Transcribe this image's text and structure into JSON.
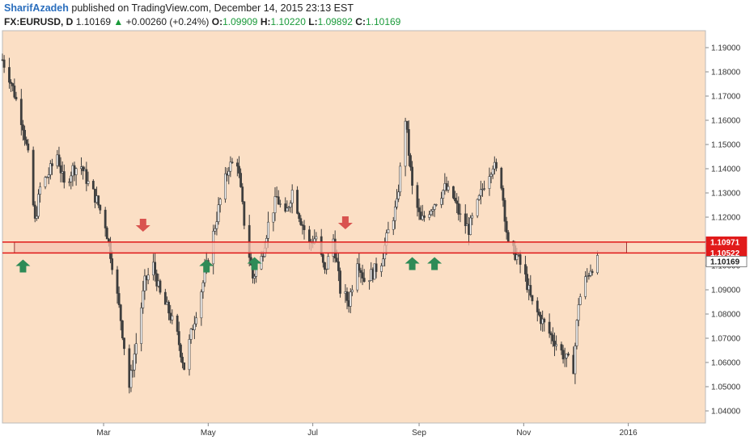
{
  "header": {
    "author": "SharifAzadeh",
    "published": "published on TradingView.com, December 14, 2015 23:13 EST",
    "symbol": "FX:EURUSD, D",
    "last": "1.10169",
    "change": "+0.00260 (+0.24%)",
    "o_label": "O:",
    "o_value": "1.09909",
    "h_label": "H:",
    "h_value": "1.10220",
    "l_label": "L:",
    "l_value": "1.09892",
    "c_label": "C:",
    "c_value": "1.10169"
  },
  "colors": {
    "background": "#fbdfc5",
    "candle": "#3d3d3d",
    "zone_fill": "#f5c4b2",
    "zone_line": "#e11a1a",
    "arrow_up": "#2e8b57",
    "arrow_down": "#d9534f"
  },
  "chart_data": {
    "type": "candlestick",
    "ylim": [
      1.035,
      1.197
    ],
    "yticks": [
      "1.04000",
      "1.05000",
      "1.06000",
      "1.07000",
      "1.08000",
      "1.09000",
      "1.10000",
      "1.11000",
      "1.12000",
      "1.13000",
      "1.14000",
      "1.15000",
      "1.16000",
      "1.17000",
      "1.18000",
      "1.19000"
    ],
    "x_labels": [
      "Mar",
      "May",
      "Jul",
      "Sep",
      "Nov",
      "2016"
    ],
    "x_label_dates": [
      "2015-03-01",
      "2015-05-01",
      "2015-07-01",
      "2015-09-01",
      "2015-11-01",
      "2016-01-01"
    ],
    "xlim": [
      "2015-01-01",
      "2016-02-15"
    ],
    "price_labels": [
      {
        "text": "1.10971",
        "value": 1.10971
      },
      {
        "text": "1.10522",
        "value": 1.10522
      },
      {
        "text": "1.10169",
        "value": 1.10169
      }
    ],
    "zone": {
      "start": "2015-01-08",
      "end": "2015-12-31",
      "low": 1.10522,
      "high": 1.10971
    },
    "arrows_up": [
      {
        "date": "2015-01-13",
        "value": 1.1025
      },
      {
        "date": "2015-04-30",
        "value": 1.1025
      },
      {
        "date": "2015-05-28",
        "value": 1.1035
      },
      {
        "date": "2015-08-28",
        "value": 1.1035
      },
      {
        "date": "2015-09-10",
        "value": 1.1035
      }
    ],
    "arrows_down": [
      {
        "date": "2015-03-24",
        "value": 1.114
      },
      {
        "date": "2015-07-20",
        "value": 1.115
      }
    ],
    "close_path": [
      [
        "2015-01-01",
        1.185
      ],
      [
        "2015-01-05",
        1.178
      ],
      [
        "2015-01-08",
        1.171
      ],
      [
        "2015-01-13",
        1.158
      ],
      [
        "2015-01-16",
        1.145
      ],
      [
        "2015-01-20",
        1.118
      ],
      [
        "2015-01-23",
        1.132
      ],
      [
        "2015-01-28",
        1.138
      ],
      [
        "2015-02-02",
        1.146
      ],
      [
        "2015-02-06",
        1.133
      ],
      [
        "2015-02-11",
        1.14
      ],
      [
        "2015-02-16",
        1.141
      ],
      [
        "2015-02-20",
        1.134
      ],
      [
        "2015-02-25",
        1.127
      ],
      [
        "2015-03-02",
        1.117
      ],
      [
        "2015-03-06",
        1.101
      ],
      [
        "2015-03-11",
        1.078
      ],
      [
        "2015-03-16",
        1.05
      ],
      [
        "2015-03-20",
        1.068
      ],
      [
        "2015-03-25",
        1.093
      ],
      [
        "2015-03-30",
        1.1
      ],
      [
        "2015-04-03",
        1.088
      ],
      [
        "2015-04-08",
        1.081
      ],
      [
        "2015-04-13",
        1.071
      ],
      [
        "2015-04-17",
        1.058
      ],
      [
        "2015-04-22",
        1.075
      ],
      [
        "2015-04-28",
        1.093
      ],
      [
        "2015-05-04",
        1.113
      ],
      [
        "2015-05-08",
        1.127
      ],
      [
        "2015-05-13",
        1.141
      ],
      [
        "2015-05-18",
        1.143
      ],
      [
        "2015-05-22",
        1.118
      ],
      [
        "2015-05-27",
        1.095
      ],
      [
        "2015-06-01",
        1.103
      ],
      [
        "2015-06-05",
        1.117
      ],
      [
        "2015-06-10",
        1.128
      ],
      [
        "2015-06-15",
        1.12
      ],
      [
        "2015-06-19",
        1.131
      ],
      [
        "2015-06-24",
        1.119
      ],
      [
        "2015-06-29",
        1.109
      ],
      [
        "2015-07-03",
        1.112
      ],
      [
        "2015-07-08",
        1.097
      ],
      [
        "2015-07-13",
        1.111
      ],
      [
        "2015-07-17",
        1.09
      ],
      [
        "2015-07-22",
        1.085
      ],
      [
        "2015-07-27",
        1.103
      ],
      [
        "2015-07-31",
        1.094
      ],
      [
        "2015-08-05",
        1.097
      ],
      [
        "2015-08-10",
        1.102
      ],
      [
        "2015-08-14",
        1.114
      ],
      [
        "2015-08-19",
        1.125
      ],
      [
        "2015-08-24",
        1.161
      ],
      [
        "2015-08-28",
        1.132
      ],
      [
        "2015-09-02",
        1.118
      ],
      [
        "2015-09-07",
        1.123
      ],
      [
        "2015-09-11",
        1.127
      ],
      [
        "2015-09-16",
        1.132
      ],
      [
        "2015-09-21",
        1.128
      ],
      [
        "2015-09-25",
        1.12
      ],
      [
        "2015-09-30",
        1.115
      ],
      [
        "2015-10-05",
        1.125
      ],
      [
        "2015-10-09",
        1.134
      ],
      [
        "2015-10-14",
        1.142
      ],
      [
        "2015-10-19",
        1.134
      ],
      [
        "2015-10-23",
        1.108
      ],
      [
        "2015-10-28",
        1.104
      ],
      [
        "2015-11-02",
        1.095
      ],
      [
        "2015-11-06",
        1.084
      ],
      [
        "2015-11-11",
        1.078
      ],
      [
        "2015-11-16",
        1.072
      ],
      [
        "2015-11-20",
        1.068
      ],
      [
        "2015-11-25",
        1.062
      ],
      [
        "2015-11-30",
        1.058
      ],
      [
        "2015-12-03",
        1.085
      ],
      [
        "2015-12-07",
        1.094
      ],
      [
        "2015-12-10",
        1.099
      ],
      [
        "2015-12-14",
        1.10169
      ]
    ]
  }
}
